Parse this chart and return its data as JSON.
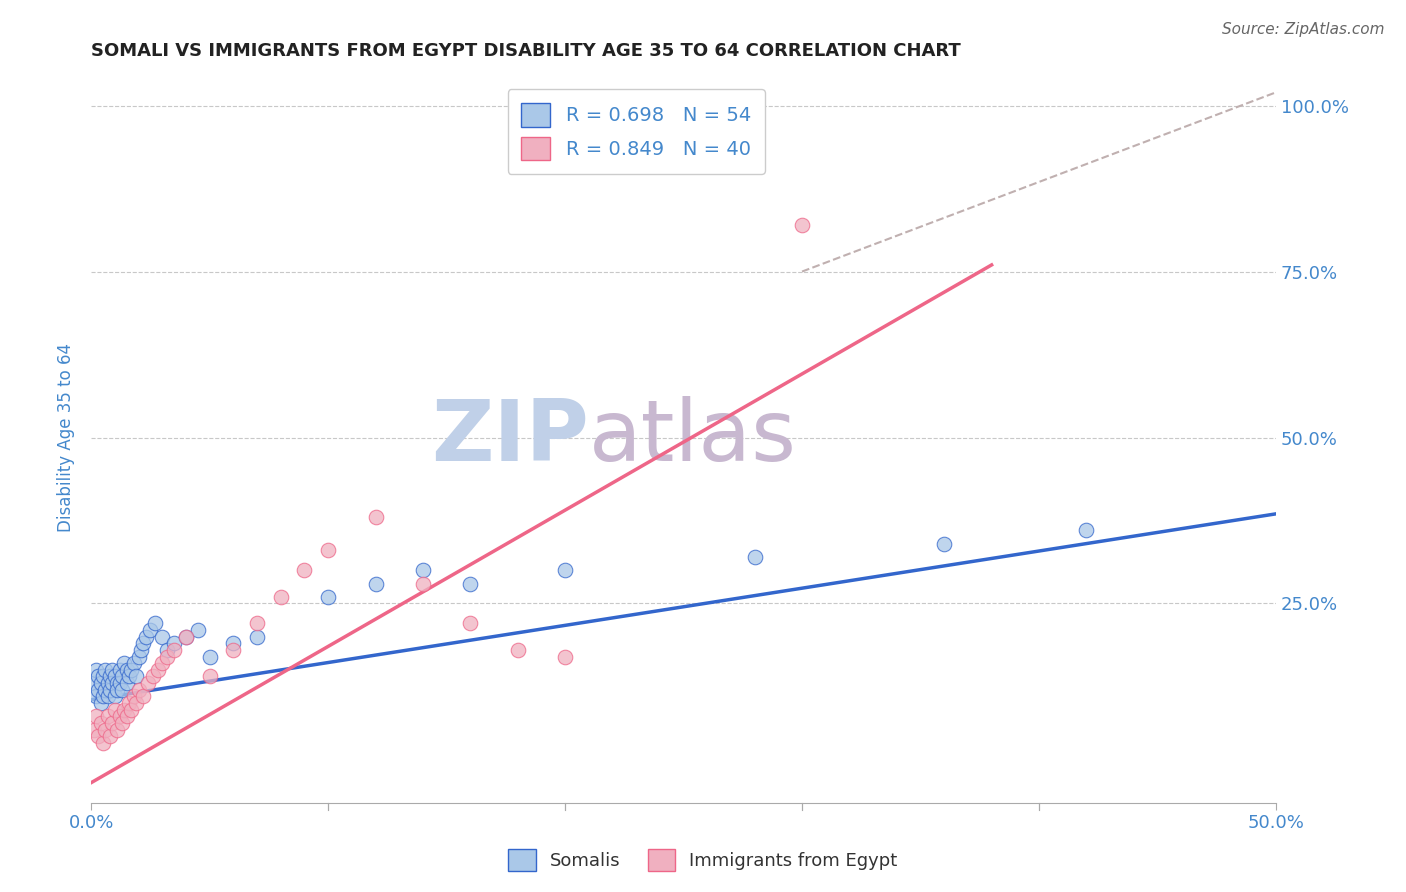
{
  "title": "SOMALI VS IMMIGRANTS FROM EGYPT DISABILITY AGE 35 TO 64 CORRELATION CHART",
  "source": "Source: ZipAtlas.com",
  "xlabel_somali": "Somalis",
  "xlabel_egypt": "Immigrants from Egypt",
  "ylabel": "Disability Age 35 to 64",
  "xlim": [
    0.0,
    0.5
  ],
  "ylim": [
    -0.05,
    1.05
  ],
  "xticks": [
    0.0,
    0.1,
    0.2,
    0.3,
    0.4,
    0.5
  ],
  "yticks": [
    0.0,
    0.25,
    0.5,
    0.75,
    1.0
  ],
  "ytick_labels_right": [
    "",
    "25.0%",
    "50.0%",
    "75.0%",
    "100.0%"
  ],
  "xtick_labels": [
    "0.0%",
    "",
    "",
    "",
    "",
    "50.0%"
  ],
  "somali_color": "#aac8e8",
  "egypt_color": "#f0b0c0",
  "somali_line_color": "#3366cc",
  "egypt_line_color": "#ee6688",
  "dashed_line_color": "#c0b0b0",
  "grid_color": "#c8c8c8",
  "axis_label_color": "#4488cc",
  "watermark_zip_color": "#c0d0e8",
  "watermark_atlas_color": "#c8b8d0",
  "legend_R_somali": "R = 0.698",
  "legend_N_somali": "N = 54",
  "legend_R_egypt": "R = 0.849",
  "legend_N_egypt": "N = 40",
  "somali_scatter_x": [
    0.001,
    0.002,
    0.002,
    0.003,
    0.003,
    0.004,
    0.004,
    0.005,
    0.005,
    0.006,
    0.006,
    0.007,
    0.007,
    0.008,
    0.008,
    0.009,
    0.009,
    0.01,
    0.01,
    0.011,
    0.011,
    0.012,
    0.012,
    0.013,
    0.013,
    0.014,
    0.015,
    0.015,
    0.016,
    0.017,
    0.018,
    0.019,
    0.02,
    0.021,
    0.022,
    0.023,
    0.025,
    0.027,
    0.03,
    0.032,
    0.035,
    0.04,
    0.045,
    0.05,
    0.06,
    0.07,
    0.1,
    0.12,
    0.14,
    0.16,
    0.2,
    0.28,
    0.36,
    0.42
  ],
  "somali_scatter_y": [
    0.13,
    0.11,
    0.15,
    0.12,
    0.14,
    0.1,
    0.13,
    0.11,
    0.14,
    0.12,
    0.15,
    0.13,
    0.11,
    0.14,
    0.12,
    0.15,
    0.13,
    0.11,
    0.14,
    0.13,
    0.12,
    0.15,
    0.13,
    0.14,
    0.12,
    0.16,
    0.15,
    0.13,
    0.14,
    0.15,
    0.16,
    0.14,
    0.17,
    0.18,
    0.19,
    0.2,
    0.21,
    0.22,
    0.2,
    0.18,
    0.19,
    0.2,
    0.21,
    0.17,
    0.19,
    0.2,
    0.26,
    0.28,
    0.3,
    0.28,
    0.3,
    0.32,
    0.34,
    0.36
  ],
  "egypt_scatter_x": [
    0.001,
    0.002,
    0.003,
    0.004,
    0.005,
    0.006,
    0.007,
    0.008,
    0.009,
    0.01,
    0.011,
    0.012,
    0.013,
    0.014,
    0.015,
    0.016,
    0.017,
    0.018,
    0.019,
    0.02,
    0.022,
    0.024,
    0.026,
    0.028,
    0.03,
    0.032,
    0.035,
    0.04,
    0.05,
    0.06,
    0.07,
    0.08,
    0.09,
    0.1,
    0.12,
    0.14,
    0.16,
    0.18,
    0.2,
    0.3
  ],
  "egypt_scatter_y": [
    0.06,
    0.08,
    0.05,
    0.07,
    0.04,
    0.06,
    0.08,
    0.05,
    0.07,
    0.09,
    0.06,
    0.08,
    0.07,
    0.09,
    0.08,
    0.1,
    0.09,
    0.11,
    0.1,
    0.12,
    0.11,
    0.13,
    0.14,
    0.15,
    0.16,
    0.17,
    0.18,
    0.2,
    0.14,
    0.18,
    0.22,
    0.26,
    0.3,
    0.33,
    0.38,
    0.28,
    0.22,
    0.18,
    0.17,
    0.82
  ],
  "somali_trendline_x": [
    0.0,
    0.5
  ],
  "somali_trendline_y": [
    0.105,
    0.385
  ],
  "egypt_trendline_x": [
    0.0,
    0.38
  ],
  "egypt_trendline_y": [
    -0.02,
    0.76
  ],
  "dashed_line_x": [
    0.3,
    0.5
  ],
  "dashed_line_y": [
    0.75,
    1.02
  ]
}
